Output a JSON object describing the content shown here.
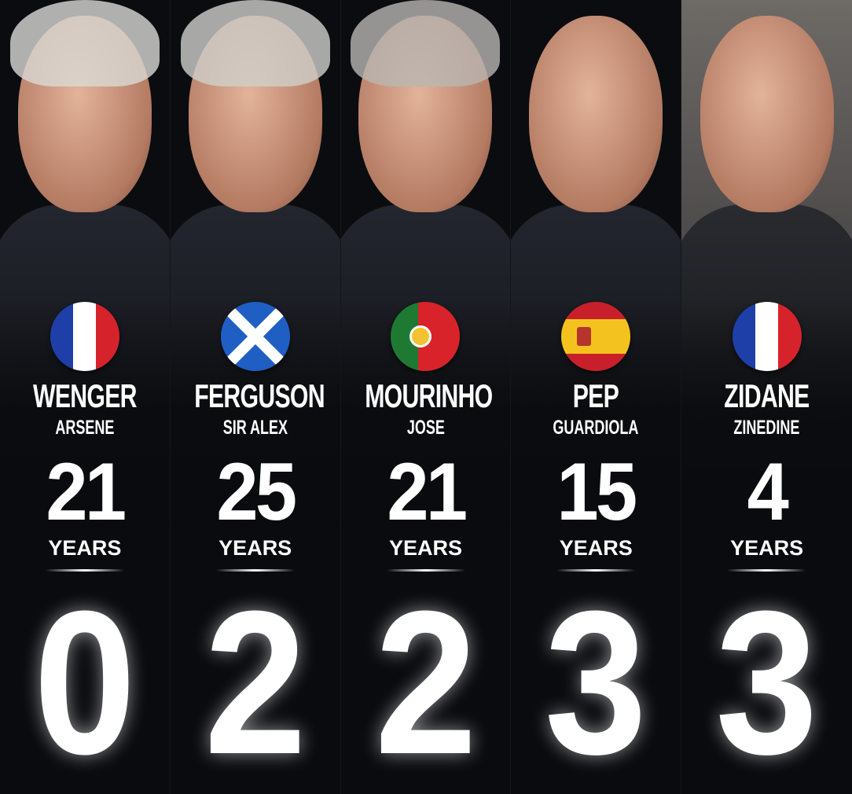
{
  "managers": [
    {
      "last": "WENGER",
      "first": "ARSENE",
      "years": "21",
      "years_label": "YEARS",
      "big": "0",
      "flag": "france-flag",
      "hair": "#d9d9d6"
    },
    {
      "last": "FERGUSON",
      "first": "SIR ALEX",
      "years": "25",
      "years_label": "YEARS",
      "big": "2",
      "flag": "scotland-flag",
      "hair": "#cfcfcc"
    },
    {
      "last": "MOURINHO",
      "first": "JOSE",
      "years": "21",
      "years_label": "YEARS",
      "big": "2",
      "flag": "portugal-flag",
      "hair": "#b9b7b3"
    },
    {
      "last": "PEP",
      "first": "GUARDIOLA",
      "years": "15",
      "years_label": "YEARS",
      "big": "3",
      "flag": "spain-flag",
      "hair": "#c8957c"
    },
    {
      "last": "ZIDANE",
      "first": "ZINEDINE",
      "years": "4",
      "years_label": "YEARS",
      "big": "3",
      "flag": "france-flag",
      "hair": "#c49a80"
    }
  ],
  "colors": {
    "background": "#0b0c10",
    "text": "#ffffff"
  }
}
